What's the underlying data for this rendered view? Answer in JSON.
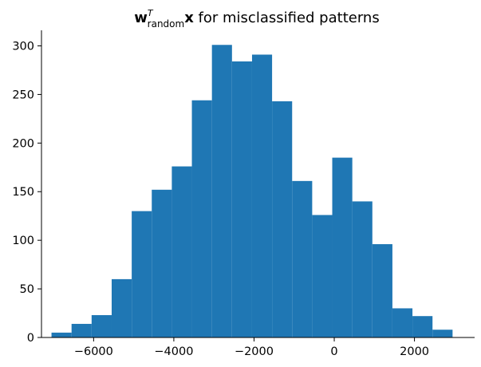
{
  "chart_data": {
    "type": "bar",
    "title": {
      "main": "w",
      "superscript": "T",
      "subscript": "random",
      "vector": "x",
      "rest": " for misclassified patterns"
    },
    "xlabel": "",
    "ylabel": "",
    "xlim": [
      -7300,
      3500
    ],
    "ylim": [
      0,
      316
    ],
    "grid": false,
    "bar_color": "#1f77b4",
    "x_ticks": [
      {
        "value": -6000,
        "label": "−6000"
      },
      {
        "value": -4000,
        "label": "−4000"
      },
      {
        "value": -2000,
        "label": "−2000"
      },
      {
        "value": 0,
        "label": "0"
      },
      {
        "value": 2000,
        "label": "2000"
      }
    ],
    "y_ticks": [
      {
        "value": 0,
        "label": "0"
      },
      {
        "value": 50,
        "label": "50"
      },
      {
        "value": 100,
        "label": "100"
      },
      {
        "value": 150,
        "label": "150"
      },
      {
        "value": 200,
        "label": "200"
      },
      {
        "value": 250,
        "label": "250"
      },
      {
        "value": 300,
        "label": "300"
      }
    ],
    "bin_edges": [
      -7050,
      -6550,
      -6050,
      -5550,
      -5050,
      -4550,
      -4050,
      -3550,
      -3050,
      -2550,
      -2050,
      -1550,
      -1050,
      -550,
      -50,
      450,
      950,
      1450,
      1950,
      2450,
      2950
    ],
    "values": [
      5,
      14,
      23,
      60,
      130,
      152,
      176,
      244,
      301,
      284,
      291,
      243,
      161,
      126,
      185,
      140,
      96,
      30,
      22,
      8
    ]
  }
}
